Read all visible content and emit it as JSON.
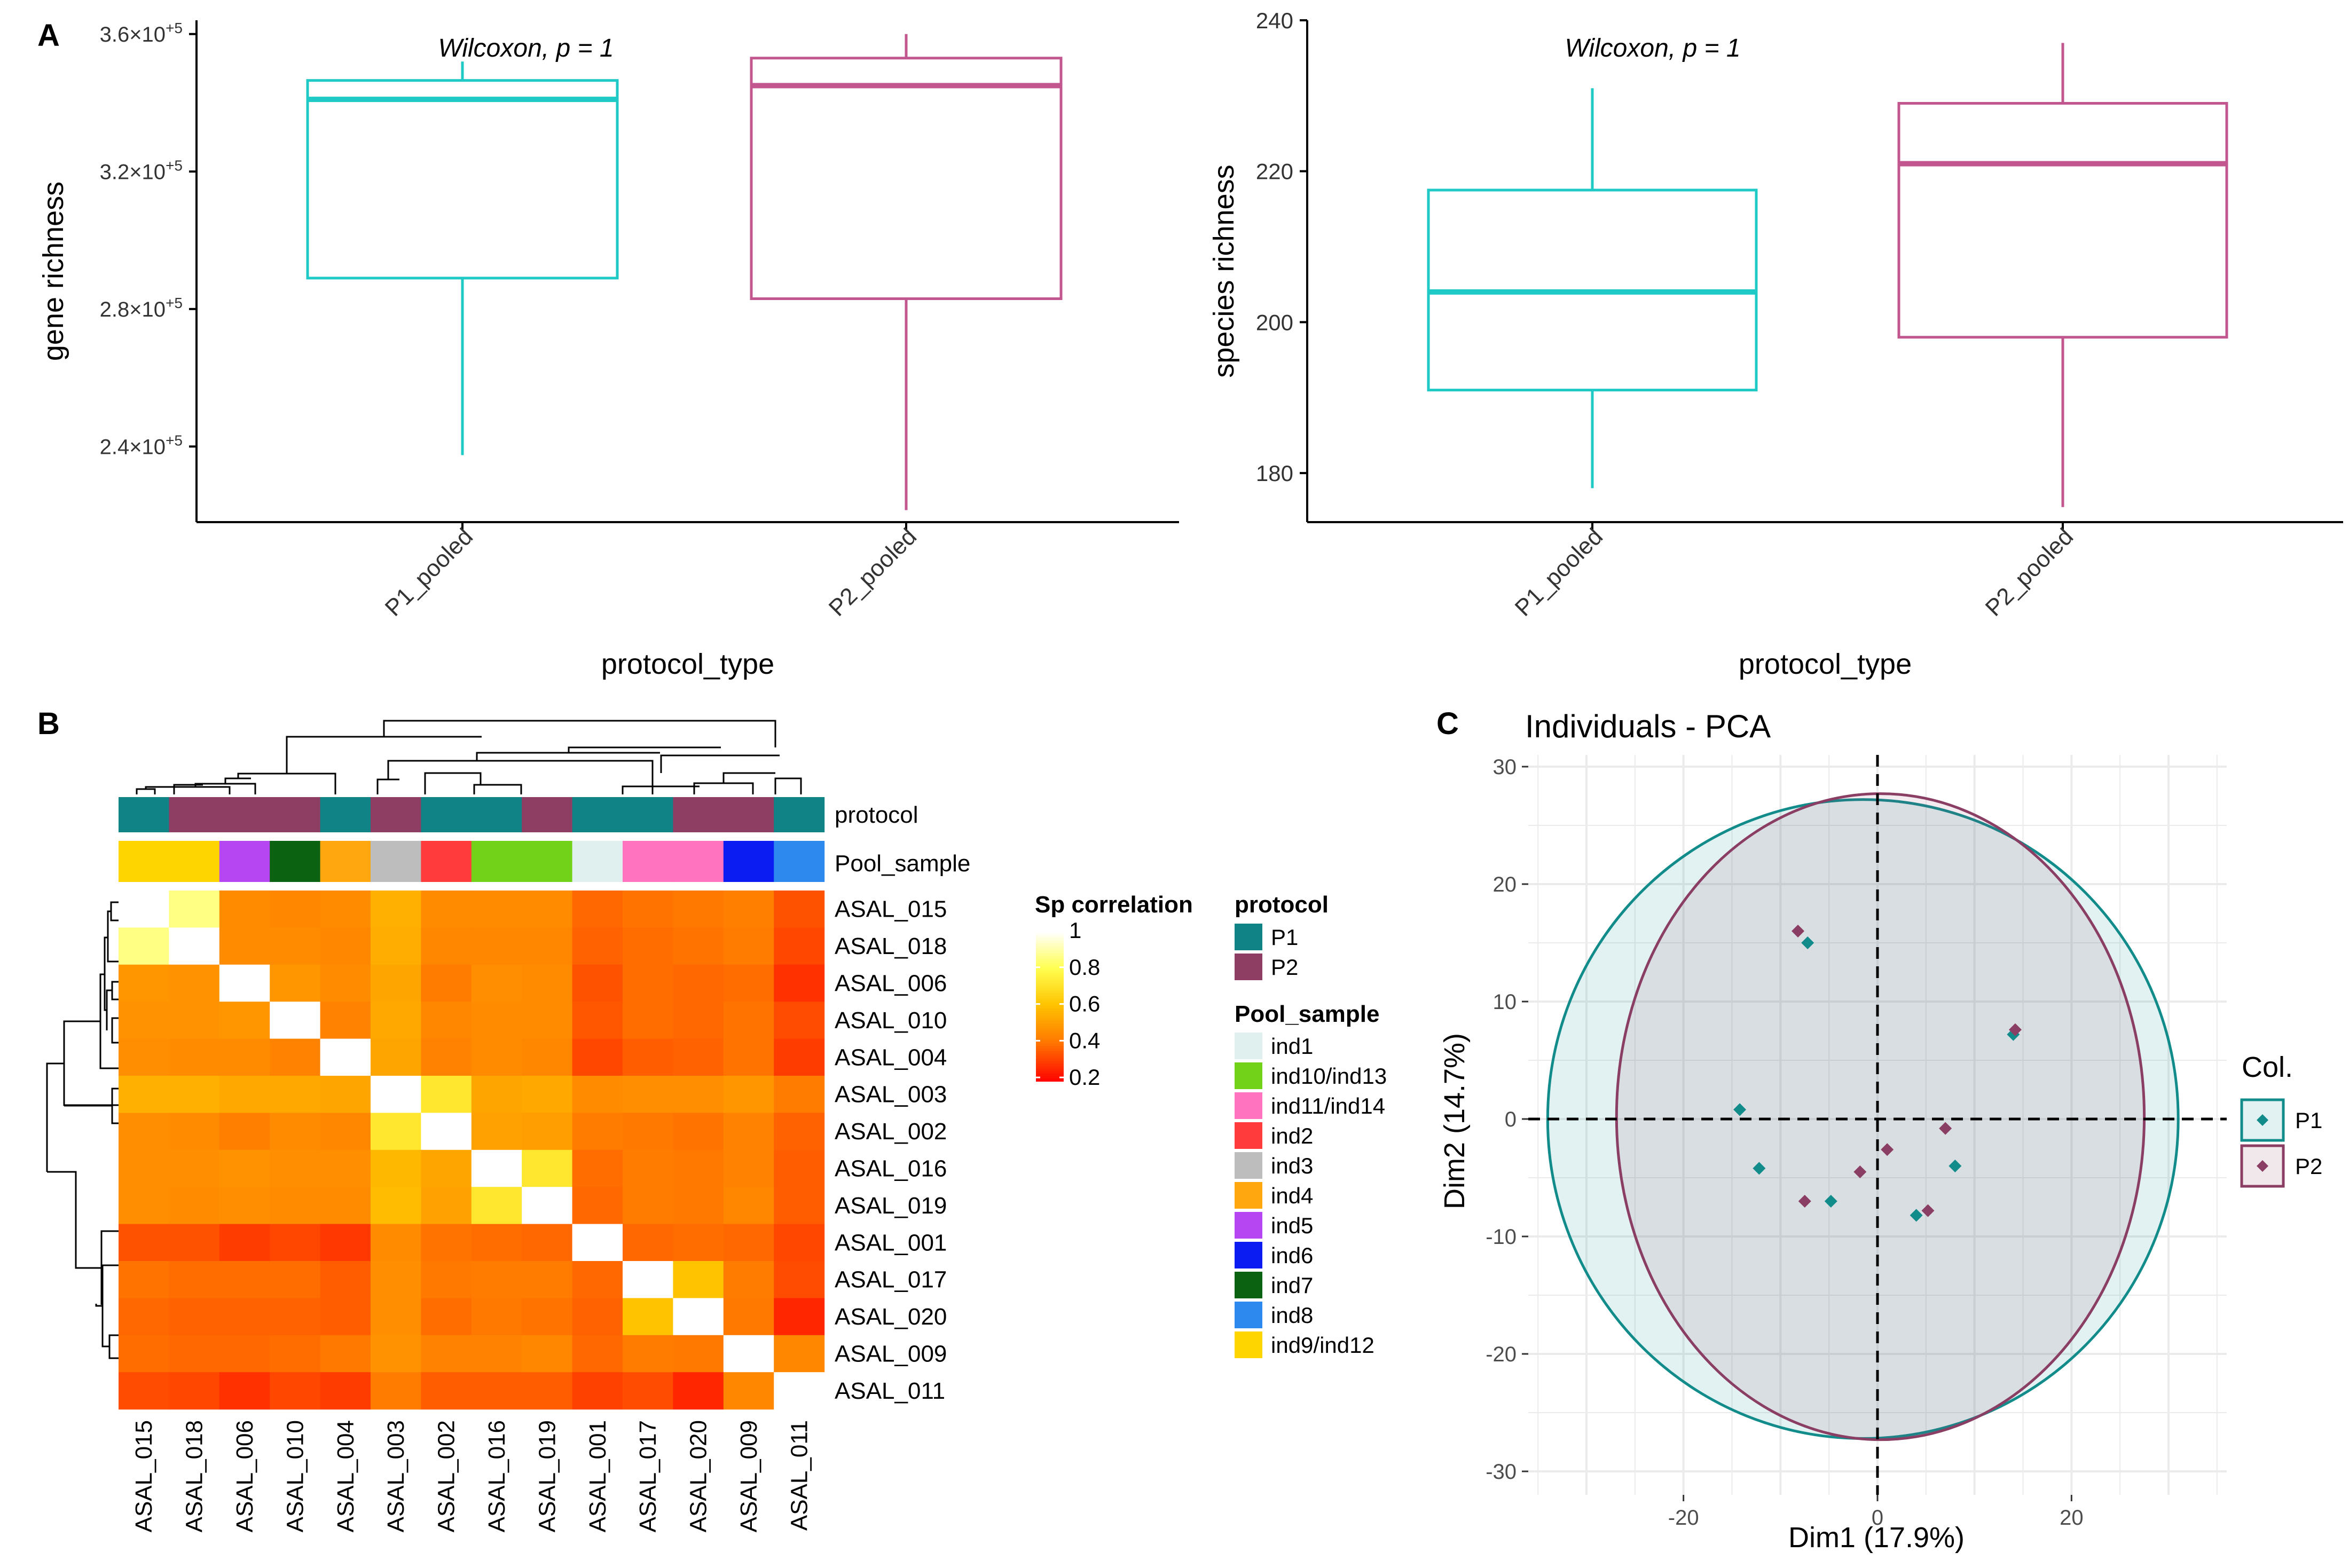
{
  "colors": {
    "p1": "#1fc9c6",
    "p2": "#c2578f",
    "p1_dark": "#128b8b",
    "p2_dark": "#8a3e63"
  },
  "chart_data": [
    {
      "panel": "A",
      "type": "box",
      "title": "",
      "annotation": "Wilcoxon, p = 1",
      "xlabel": "protocol_type",
      "ylabel": "gene richness",
      "categories": [
        "P1_pooled",
        "P2_pooled"
      ],
      "ylim": [
        218000,
        364000
      ],
      "yticks": [
        240000,
        280000,
        320000,
        360000
      ],
      "ytick_labels": [
        {
          "mant": "2.4",
          "exp": "+5"
        },
        {
          "mant": "2.8",
          "exp": "+5"
        },
        {
          "mant": "3.2",
          "exp": "+5"
        },
        {
          "mant": "3.6",
          "exp": "+5"
        }
      ],
      "boxes": [
        {
          "name": "P1_pooled",
          "min": 237500,
          "q1": 289000,
          "median": 341000,
          "q3": 346500,
          "max": 352000
        },
        {
          "name": "P2_pooled",
          "min": 221500,
          "q1": 283000,
          "median": 345000,
          "q3": 353000,
          "max": 360000
        }
      ]
    },
    {
      "panel": "A-right",
      "type": "box",
      "title": "",
      "annotation": "Wilcoxon, p = 1",
      "xlabel": "protocol_type",
      "ylabel": "species richness",
      "categories": [
        "P1_pooled",
        "P2_pooled"
      ],
      "ylim": [
        173.5,
        240
      ],
      "yticks": [
        180,
        200,
        220,
        240
      ],
      "ytick_labels": [
        "180",
        "200",
        "220",
        "240"
      ],
      "boxes": [
        {
          "name": "P1_pooled",
          "min": 178,
          "q1": 191,
          "median": 204,
          "q3": 217.5,
          "max": 231
        },
        {
          "name": "P2_pooled",
          "min": 175.5,
          "q1": 198,
          "median": 221,
          "q3": 229,
          "max": 237
        }
      ]
    },
    {
      "panel": "B",
      "type": "heatmap",
      "title": "",
      "annotation_labels": [
        "protocol",
        "Pool_sample"
      ],
      "samples": [
        "ASAL_015",
        "ASAL_018",
        "ASAL_006",
        "ASAL_010",
        "ASAL_004",
        "ASAL_003",
        "ASAL_002",
        "ASAL_016",
        "ASAL_019",
        "ASAL_001",
        "ASAL_017",
        "ASAL_020",
        "ASAL_009",
        "ASAL_011"
      ],
      "protocol": [
        "P1",
        "P2",
        "P2",
        "P2",
        "P1",
        "P2",
        "P1",
        "P1",
        "P2",
        "P1",
        "P1",
        "P2",
        "P2",
        "P1"
      ],
      "pool_sample": [
        "ind9/ind12",
        "ind9/ind12",
        "ind5",
        "ind7",
        "ind4",
        "ind3",
        "ind2",
        "ind10/ind13",
        "ind10/ind13",
        "ind1",
        "ind11/ind14",
        "ind11/ind14",
        "ind6",
        "ind8"
      ],
      "values": [
        [
          1.0,
          0.86,
          0.45,
          0.44,
          0.45,
          0.55,
          0.45,
          0.45,
          0.45,
          0.37,
          0.39,
          0.4,
          0.42,
          0.33
        ],
        [
          0.86,
          1.0,
          0.45,
          0.45,
          0.44,
          0.54,
          0.44,
          0.44,
          0.44,
          0.36,
          0.38,
          0.39,
          0.41,
          0.31
        ],
        [
          0.48,
          0.47,
          1.0,
          0.48,
          0.45,
          0.52,
          0.41,
          0.46,
          0.45,
          0.33,
          0.38,
          0.37,
          0.38,
          0.27
        ],
        [
          0.47,
          0.47,
          0.48,
          1.0,
          0.43,
          0.53,
          0.44,
          0.45,
          0.45,
          0.34,
          0.38,
          0.37,
          0.39,
          0.32
        ],
        [
          0.46,
          0.45,
          0.45,
          0.43,
          1.0,
          0.52,
          0.43,
          0.45,
          0.44,
          0.31,
          0.35,
          0.36,
          0.39,
          0.29
        ],
        [
          0.55,
          0.55,
          0.53,
          0.53,
          0.52,
          1.0,
          0.72,
          0.52,
          0.53,
          0.45,
          0.46,
          0.46,
          0.48,
          0.41
        ],
        [
          0.46,
          0.45,
          0.42,
          0.45,
          0.44,
          0.72,
          1.0,
          0.51,
          0.5,
          0.41,
          0.4,
          0.39,
          0.43,
          0.36
        ],
        [
          0.46,
          0.46,
          0.47,
          0.46,
          0.46,
          0.57,
          0.52,
          1.0,
          0.72,
          0.38,
          0.41,
          0.4,
          0.43,
          0.35
        ],
        [
          0.46,
          0.45,
          0.46,
          0.45,
          0.45,
          0.58,
          0.51,
          0.72,
          1.0,
          0.37,
          0.41,
          0.4,
          0.44,
          0.35
        ],
        [
          0.33,
          0.33,
          0.29,
          0.31,
          0.28,
          0.45,
          0.39,
          0.38,
          0.37,
          1.0,
          0.37,
          0.38,
          0.37,
          0.31
        ],
        [
          0.39,
          0.38,
          0.38,
          0.38,
          0.35,
          0.46,
          0.4,
          0.41,
          0.41,
          0.37,
          1.0,
          0.6,
          0.41,
          0.32
        ],
        [
          0.37,
          0.36,
          0.36,
          0.36,
          0.35,
          0.46,
          0.38,
          0.4,
          0.39,
          0.36,
          0.6,
          1.0,
          0.4,
          0.25
        ],
        [
          0.38,
          0.37,
          0.37,
          0.38,
          0.4,
          0.47,
          0.43,
          0.43,
          0.44,
          0.37,
          0.41,
          0.4,
          1.0,
          0.44
        ],
        [
          0.32,
          0.31,
          0.27,
          0.31,
          0.29,
          0.41,
          0.35,
          0.35,
          0.35,
          0.3,
          0.32,
          0.25,
          0.44,
          1.0
        ]
      ],
      "colorbar": {
        "title": "Sp correlation",
        "ticks": [
          1,
          0.8,
          0.6,
          0.4,
          0.2
        ],
        "tick_labels": [
          "1",
          "0.8",
          "0.6",
          "0.4",
          "0.2"
        ],
        "range": [
          0.18,
          1
        ]
      },
      "legend_protocol": {
        "title": "protocol",
        "items": [
          {
            "label": "P1",
            "color": "#0f8386"
          },
          {
            "label": "P2",
            "color": "#8d3e62"
          }
        ]
      },
      "legend_pool": {
        "title": "Pool_sample",
        "items": [
          {
            "label": "ind1",
            "color": "#dff0ee"
          },
          {
            "label": "ind10/ind13",
            "color": "#71d219"
          },
          {
            "label": "ind11/ind14",
            "color": "#ff73bf"
          },
          {
            "label": "ind2",
            "color": "#ff3b3b"
          },
          {
            "label": "ind3",
            "color": "#bdbdbd"
          },
          {
            "label": "ind4",
            "color": "#ffa70f"
          },
          {
            "label": "ind5",
            "color": "#b546f2"
          },
          {
            "label": "ind6",
            "color": "#0a1cf2"
          },
          {
            "label": "ind7",
            "color": "#0b6312"
          },
          {
            "label": "ind8",
            "color": "#2d89ee"
          },
          {
            "label": "ind9/ind12",
            "color": "#ffd500"
          }
        ]
      }
    },
    {
      "panel": "C",
      "type": "scatter",
      "title": "Individuals - PCA",
      "xlabel": "Dim1 (17.9%)",
      "ylabel": "Dim2 (14.7%)",
      "xlim": [
        -36,
        36
      ],
      "ylim": [
        -32,
        31
      ],
      "xticks": [
        -20,
        0,
        20
      ],
      "xtick_labels": [
        "-20",
        "0",
        "20"
      ],
      "yticks": [
        30,
        20,
        10,
        0,
        -10,
        -20,
        -30
      ],
      "ytick_labels": [
        "30",
        "20",
        "10",
        "0",
        "-10",
        "-20",
        "-30"
      ],
      "legend_title": "Col.",
      "series": [
        {
          "name": "P1",
          "points": [
            [
              -7.2,
              15.0
            ],
            [
              14.0,
              7.2
            ],
            [
              -14.2,
              0.8
            ],
            [
              -12.2,
              -4.2
            ],
            [
              -4.8,
              -7.0
            ],
            [
              4.0,
              -8.2
            ],
            [
              8.0,
              -4.0
            ]
          ]
        },
        {
          "name": "P2",
          "points": [
            [
              -8.2,
              16.0
            ],
            [
              14.2,
              7.6
            ],
            [
              7.0,
              -0.8
            ],
            [
              -1.8,
              -4.5
            ],
            [
              1.0,
              -2.6
            ],
            [
              -7.5,
              -7.0
            ],
            [
              5.2,
              -7.8
            ]
          ]
        }
      ],
      "ellipses": [
        {
          "name": "P1",
          "cx": -1.5,
          "cy": 0,
          "rx": 32.5,
          "ry": 27.2
        },
        {
          "name": "P2",
          "cx": 0.3,
          "cy": 0.2,
          "rx": 27.2,
          "ry": 27.5
        }
      ]
    }
  ],
  "panels": {
    "a": "A",
    "b": "B",
    "c": "C"
  }
}
